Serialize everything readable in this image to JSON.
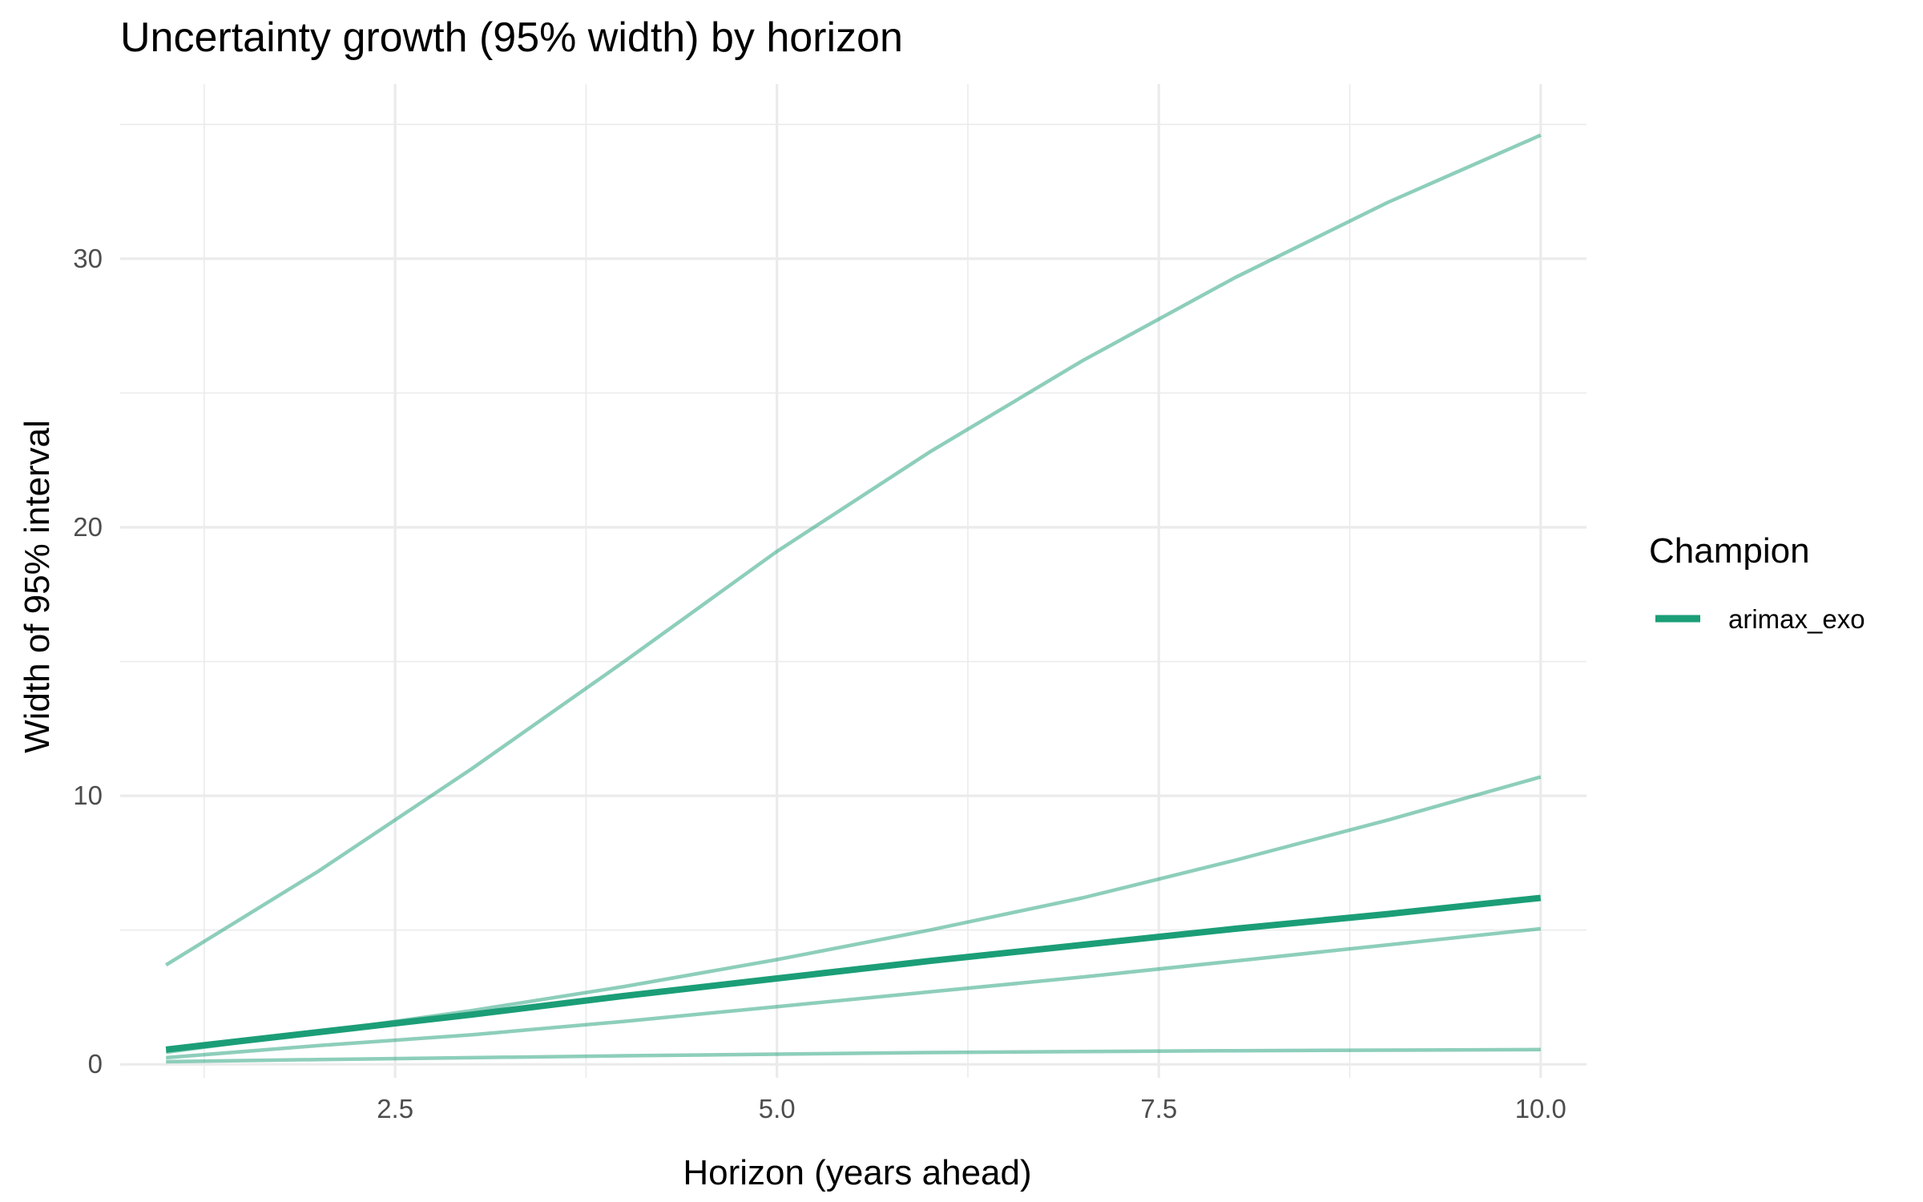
{
  "chart_data": {
    "type": "line",
    "title": "Uncertainty growth (95% width) by horizon",
    "xlabel": "Horizon (years ahead)",
    "ylabel": "Width of 95% interval",
    "xlim": [
      0.7,
      10.3
    ],
    "ylim": [
      -0.5,
      36.5
    ],
    "x_ticks": [
      2.5,
      5.0,
      7.5,
      10.0
    ],
    "x_tick_labels": [
      "2.5",
      "5.0",
      "7.5",
      "10.0"
    ],
    "x_minor_ticks": [
      1.25,
      3.75,
      6.25,
      8.75
    ],
    "y_ticks": [
      0,
      10,
      20,
      30
    ],
    "y_tick_labels": [
      "0",
      "10",
      "20",
      "30"
    ],
    "y_minor_ticks": [
      5,
      15,
      25,
      35
    ],
    "grid": true,
    "legend": {
      "title": "Champion",
      "position": "right",
      "entries": [
        {
          "label": "arimax_exo",
          "color": "#1b9e77"
        }
      ]
    },
    "x": [
      1,
      2,
      3,
      4,
      5,
      6,
      7,
      8,
      9,
      10
    ],
    "series": [
      {
        "values": [
          3.7,
          7.2,
          11.0,
          15.0,
          19.1,
          22.8,
          26.2,
          29.3,
          32.1,
          34.6
        ],
        "color": "#1b9e77",
        "opacity": 0.5,
        "emphasis": false
      },
      {
        "values": [
          0.45,
          1.2,
          2.0,
          2.9,
          3.9,
          5.0,
          6.2,
          7.6,
          9.1,
          10.7
        ],
        "color": "#1b9e77",
        "opacity": 0.5,
        "emphasis": false
      },
      {
        "values": [
          0.25,
          0.7,
          1.1,
          1.6,
          2.15,
          2.7,
          3.25,
          3.85,
          4.45,
          5.05
        ],
        "color": "#1b9e77",
        "opacity": 0.5,
        "emphasis": false
      },
      {
        "values": [
          0.1,
          0.18,
          0.25,
          0.32,
          0.38,
          0.44,
          0.48,
          0.51,
          0.53,
          0.55
        ],
        "color": "#1b9e77",
        "opacity": 0.5,
        "emphasis": false
      },
      {
        "values": [
          0.55,
          1.2,
          1.85,
          2.55,
          3.2,
          3.85,
          4.45,
          5.05,
          5.6,
          6.2
        ],
        "color": "#1b9e77",
        "opacity": 1.0,
        "emphasis": true
      }
    ]
  }
}
